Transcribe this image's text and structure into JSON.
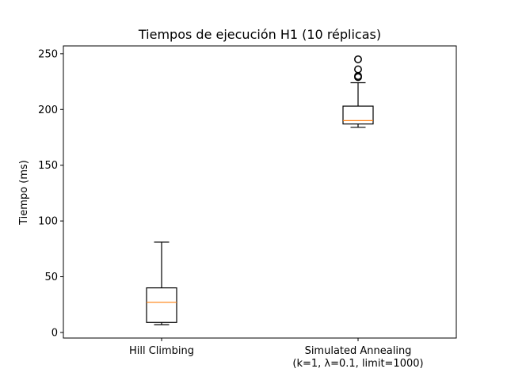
{
  "chart_data": {
    "type": "boxplot",
    "title": "Tiempos de ejecución H1 (10 réplicas)",
    "xlabel": "",
    "ylabel": "Tiempo (ms)",
    "ylim": [
      -5,
      257
    ],
    "yticks": [
      0,
      50,
      100,
      150,
      200,
      250
    ],
    "categories": [
      [
        "Hill Climbing"
      ],
      [
        "Simulated Annealing",
        "(k=1, λ=0.1, limit=1000)"
      ]
    ],
    "series": [
      {
        "name": "Hill Climbing",
        "whisker_low": 7,
        "q1": 9,
        "median": 27,
        "q3": 40,
        "whisker_high": 81,
        "fliers": []
      },
      {
        "name": "Simulated Annealing (k=1, λ=0.1, limit=1000)",
        "whisker_low": 184,
        "q1": 187,
        "median": 190,
        "q3": 203,
        "whisker_high": 224,
        "fliers": [
          229,
          230,
          236,
          245
        ]
      }
    ],
    "grid": false,
    "colors": {
      "box": "#000000",
      "median": "#ff7f0e"
    }
  }
}
